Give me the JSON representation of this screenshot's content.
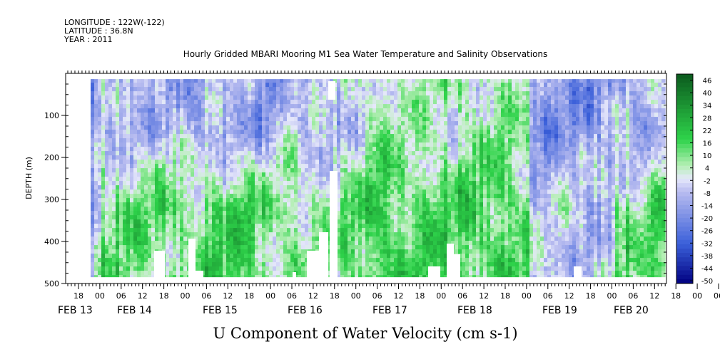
{
  "meta": {
    "longitude": "LONGITUDE : 122W(-122)",
    "latitude": "LATITUDE : 36.8N",
    "year": "YEAR : 2011"
  },
  "chart_data": {
    "type": "heatmap",
    "title": "Hourly Gridded MBARI Mooring M1 Sea Water Temperature and Salinity Observations",
    "xlabel": "U Component of Water Velocity (cm s-1)",
    "ylabel": "DEPTH (m)",
    "ylim": [
      500,
      0
    ],
    "y_ticks": [
      100,
      200,
      300,
      400,
      500
    ],
    "x_hour_ticks": [
      "18",
      "00",
      "06",
      "12",
      "18",
      "00",
      "06",
      "12",
      "18",
      "00",
      "06",
      "12",
      "18",
      "00",
      "06",
      "12",
      "18",
      "00",
      "06",
      "12",
      "18",
      "00",
      "06",
      "12",
      "18",
      "00",
      "06",
      "12",
      "18",
      "00",
      "06",
      "12"
    ],
    "x_day_labels": [
      "FEB 13",
      "FEB 14",
      "FEB 15",
      "FEB 16",
      "FEB 17",
      "FEB 18",
      "FEB 19",
      "FEB 20"
    ],
    "colorbar": {
      "levels": [
        46,
        40,
        34,
        28,
        22,
        16,
        10,
        4,
        -2,
        -8,
        -14,
        -20,
        -26,
        -32,
        -38,
        -44,
        -50
      ],
      "colors": {
        "strong_negative": "#000080",
        "negative": "#3a5fd9",
        "weak_negative": "#b8bcf0",
        "weak_positive": "#b4efb4",
        "positive": "#2ed34a",
        "strong_positive": "#0b5a1e"
      }
    },
    "day_profiles": [
      {
        "day": "FEB 13",
        "upper_mean": -18,
        "lower_mean": -6
      },
      {
        "day": "FEB 14",
        "upper_mean": -10,
        "lower_mean": 10
      },
      {
        "day": "FEB 15",
        "upper_mean": -14,
        "lower_mean": 12
      },
      {
        "day": "FEB 16",
        "upper_mean": -8,
        "lower_mean": 8
      },
      {
        "day": "FEB 17",
        "upper_mean": 2,
        "lower_mean": 14
      },
      {
        "day": "FEB 18",
        "upper_mean": 4,
        "lower_mean": 14
      },
      {
        "day": "FEB 19",
        "upper_mean": -16,
        "lower_mean": -6
      },
      {
        "day": "FEB 20",
        "upper_mean": -10,
        "lower_mean": 10
      }
    ]
  }
}
